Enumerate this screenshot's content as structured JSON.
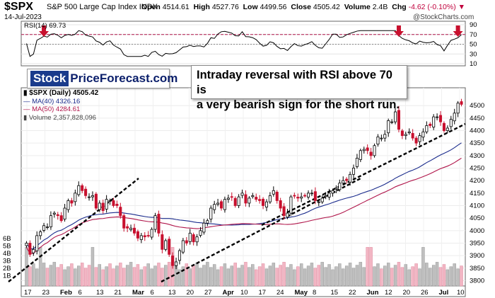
{
  "header": {
    "symbol": "$SPX",
    "name": "S&P 500 Large Cap Index",
    "exchange": "INDX",
    "date": "14-Jul-2023",
    "open_label": "Open",
    "open": "4514.61",
    "high_label": "High",
    "high": "4527.76",
    "low_label": "Low",
    "low": "4499.56",
    "close_label": "Close",
    "close": "4505.42",
    "volume_label": "Volume",
    "volume": "2.4B",
    "chg_label": "Chg",
    "chg": "-4.62 (-0.10%)",
    "brand": "@StockCharts.com"
  },
  "rsi_panel": {
    "label": "RSI(14) 69.73",
    "ticks": [
      "90",
      "70",
      "50",
      "30",
      "10"
    ],
    "arrow_color": "#c8102e"
  },
  "logo": {
    "part1": "Stock",
    "part2": "PriceForecast.com"
  },
  "callout": {
    "line1": "Intraday reversal with RSI above 70 is",
    "line2": "a very bearish sign for the short run."
  },
  "legend": {
    "title": "$SPX (Daily) 4505.42",
    "ma40": "MA(40) 4326.16",
    "ma50": "MA(50) 4284.61",
    "volume": "Volume 2,357,828,096"
  },
  "colors": {
    "up": "#000000",
    "down": "#c8102e",
    "ma40": "#1a2b8c",
    "ma50": "#b0154a",
    "trend": "#000000"
  },
  "chart_data": {
    "type": "candlestick",
    "title": "$SPX (Daily) 4505.42",
    "y_ticks": [
      "4500",
      "4450",
      "4400",
      "4350",
      "4300",
      "4250",
      "4200",
      "4150",
      "4100",
      "4050",
      "4000",
      "3950",
      "3900",
      "3850",
      "3800"
    ],
    "volume_ticks": [
      "6B",
      "5B",
      "4B",
      "3B",
      "2B",
      "1B"
    ],
    "x_ticks": [
      {
        "label": "17",
        "bold": false
      },
      {
        "label": "23",
        "bold": false
      },
      {
        "label": "Feb",
        "bold": true
      },
      {
        "label": "6",
        "bold": false
      },
      {
        "label": "13",
        "bold": false
      },
      {
        "label": "21",
        "bold": false
      },
      {
        "label": "Mar",
        "bold": true
      },
      {
        "label": "6",
        "bold": false
      },
      {
        "label": "13",
        "bold": false
      },
      {
        "label": "20",
        "bold": false
      },
      {
        "label": "27",
        "bold": false
      },
      {
        "label": "Apr",
        "bold": true
      },
      {
        "label": "10",
        "bold": false
      },
      {
        "label": "17",
        "bold": false
      },
      {
        "label": "24",
        "bold": false
      },
      {
        "label": "May",
        "bold": true
      },
      {
        "label": "8",
        "bold": false
      },
      {
        "label": "15",
        "bold": false
      },
      {
        "label": "22",
        "bold": false
      },
      {
        "label": "Jun",
        "bold": true
      },
      {
        "label": "12",
        "bold": false
      },
      {
        "label": "20",
        "bold": false
      },
      {
        "label": "26",
        "bold": false
      },
      {
        "label": "Jul",
        "bold": true
      },
      {
        "label": "10",
        "bold": false
      }
    ],
    "ylim": [
      3790,
      4560
    ],
    "closes": [
      3950,
      3905,
      3925,
      3980,
      3995,
      4020,
      4015,
      4060,
      4070,
      4060,
      4040,
      4090,
      4120,
      4110,
      4150,
      4180,
      4160,
      4140,
      4135,
      4140,
      4090,
      4110,
      4080,
      4125,
      4120,
      4100,
      4100,
      4060,
      4010,
      4010,
      4010,
      3990,
      3970,
      3980,
      3975,
      3980,
      4005,
      4060,
      3990,
      3925,
      3960,
      3905,
      3860,
      3875,
      3920,
      3960,
      3950,
      3990,
      3955,
      3975,
      4000,
      4030,
      4040,
      4090,
      4105,
      4110,
      4090,
      4125,
      4130,
      4135,
      4100,
      4135,
      4150,
      4110,
      4130,
      4140,
      4125,
      4120,
      4100,
      4115,
      4140,
      4160,
      4120,
      4090,
      4060,
      4070,
      4135,
      4140,
      4130,
      4135,
      4140,
      4150,
      4150,
      4120,
      4115,
      4130,
      4140,
      4150,
      4160,
      4170,
      4190,
      4200,
      4200,
      4225,
      4250,
      4290,
      4320,
      4325,
      4320,
      4300,
      4340,
      4375,
      4370,
      4385,
      4440,
      4435,
      4475,
      4405,
      4380,
      4385,
      4395,
      4370,
      4350,
      4380,
      4395,
      4420,
      4420,
      4455,
      4455,
      4435,
      4400,
      4410,
      4445,
      4470,
      4510,
      4505
    ],
    "trendlines": "three rising support lines",
    "ma40": "MA(40) 4326.16",
    "ma50": "MA(50) 4284.61"
  }
}
